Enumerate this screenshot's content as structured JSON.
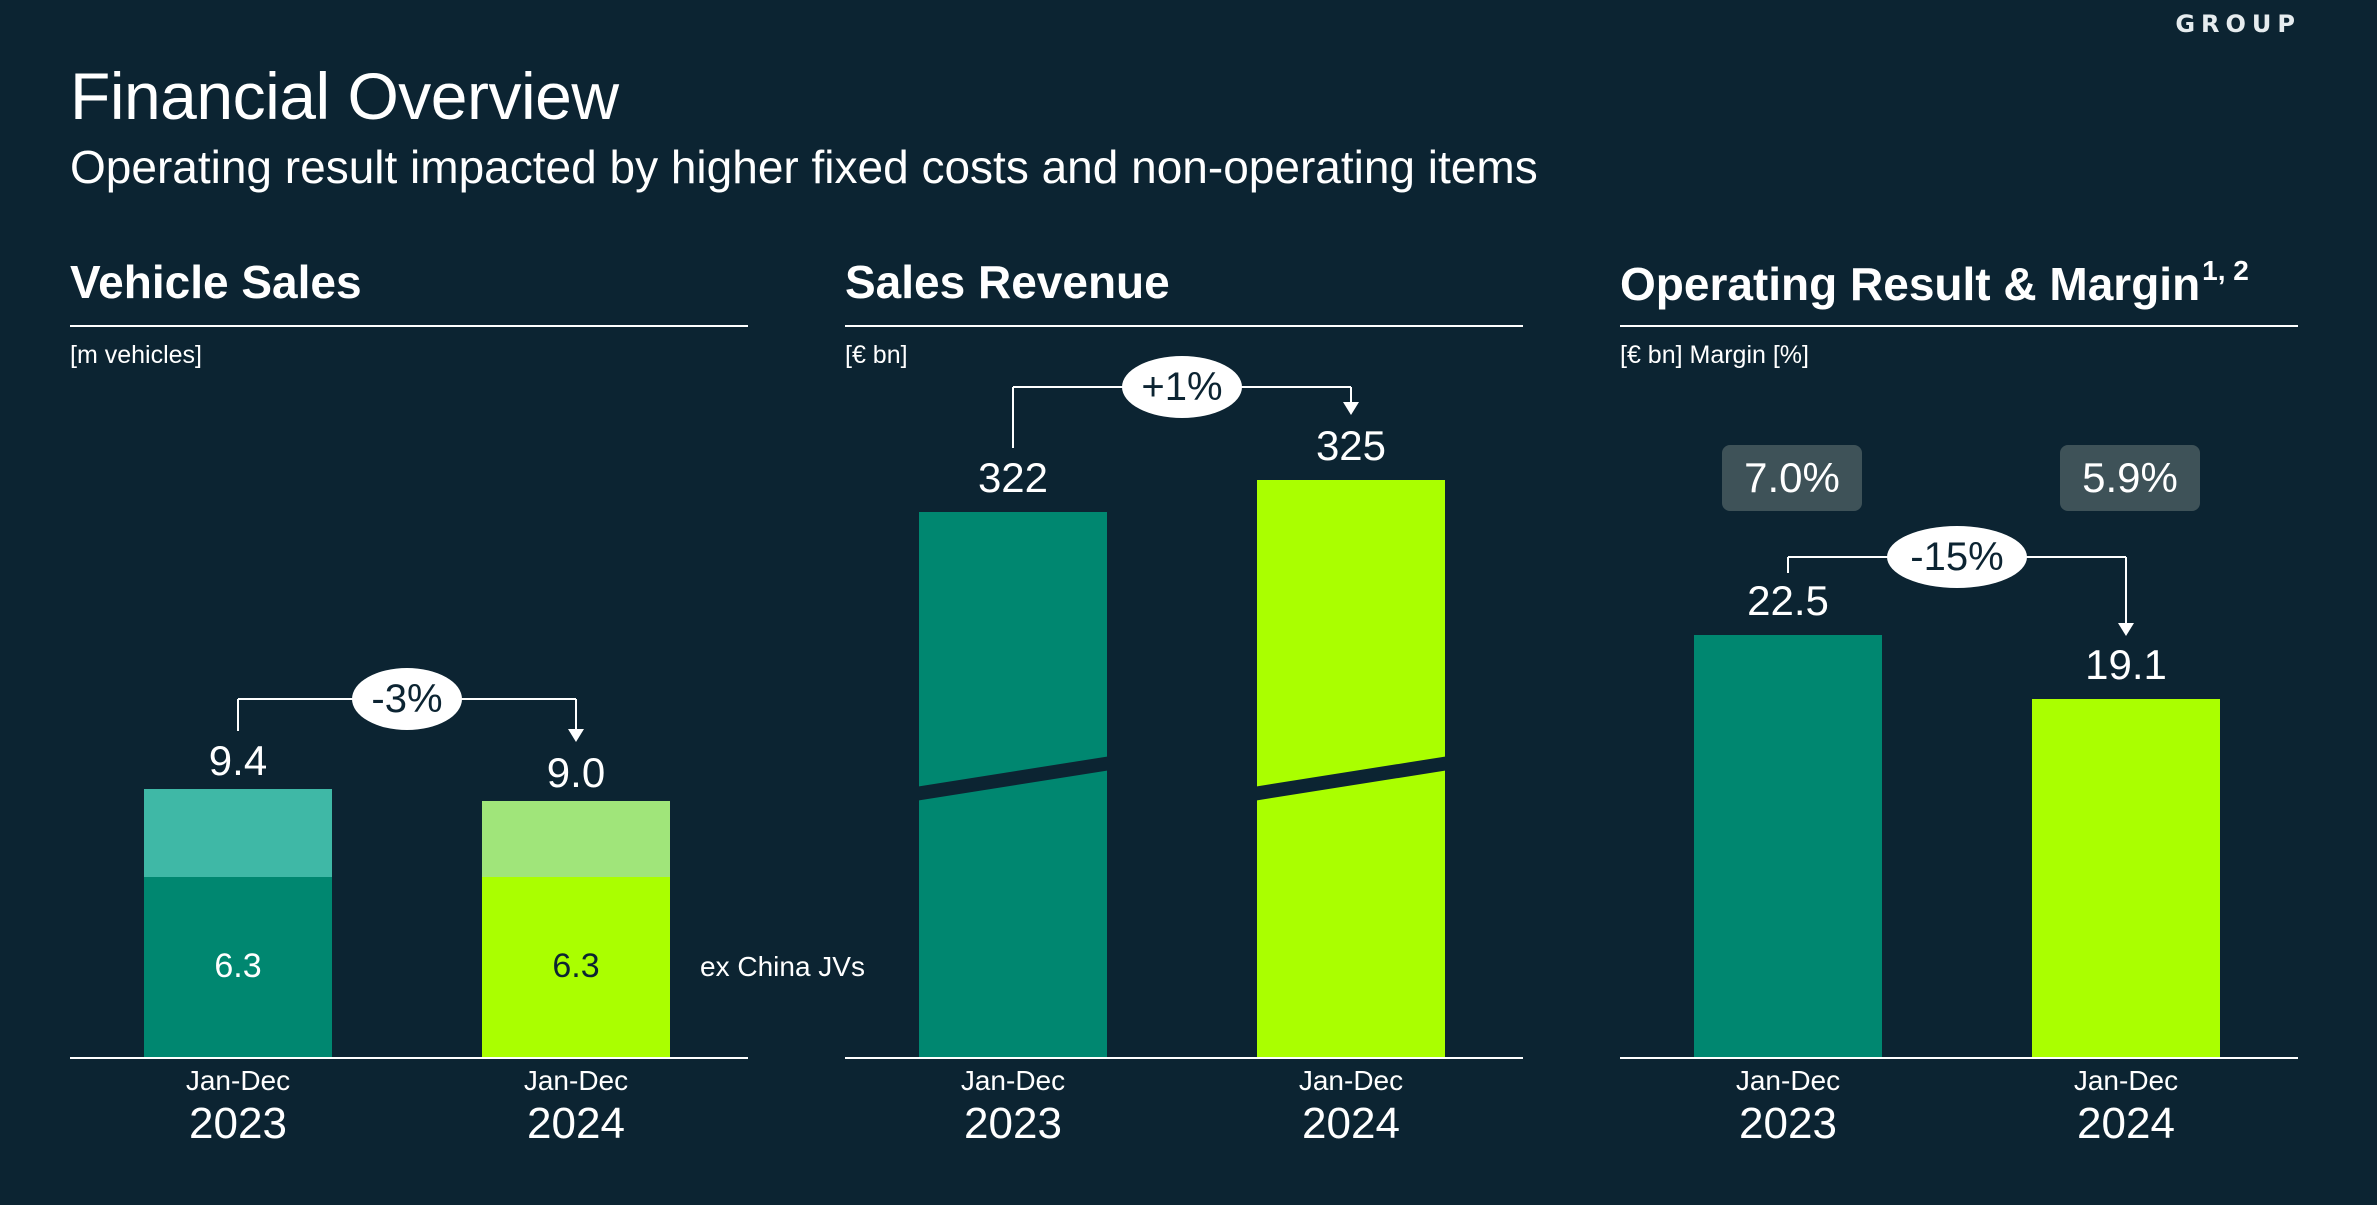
{
  "header": {
    "brand": "GROUP",
    "title": "Financial Overview",
    "subtitle": "Operating result impacted by higher fixed costs and non-operating items"
  },
  "colors": {
    "background": "#0c2432",
    "bar_2023": "#008770",
    "bar_2023_light": "#3fb8a6",
    "bar_2024": "#aaff00",
    "bar_2024_light": "#a0e57a",
    "margin_box": "#3e5258"
  },
  "chart_data": [
    {
      "type": "bar",
      "title": "Vehicle Sales",
      "unit": "[m vehicles]",
      "categories": [
        "Jan-Dec 2023",
        "Jan-Dec 2024"
      ],
      "periods": [
        "Jan-Dec",
        "Jan-Dec"
      ],
      "years": [
        "2023",
        "2024"
      ],
      "series": [
        {
          "name": "ex China JVs",
          "values": [
            6.3,
            6.3
          ]
        },
        {
          "name": "China JVs",
          "values": [
            3.1,
            2.7
          ]
        }
      ],
      "totals": [
        9.4,
        9.0
      ],
      "total_labels": [
        "9.4",
        "9.0"
      ],
      "inner_labels": [
        "6.3",
        "6.3"
      ],
      "series_label": "ex China JVs",
      "change": "-3%",
      "ylim": [
        0,
        25
      ]
    },
    {
      "type": "bar",
      "title": "Sales Revenue",
      "unit": "[€ bn]",
      "categories": [
        "Jan-Dec 2023",
        "Jan-Dec 2024"
      ],
      "periods": [
        "Jan-Dec",
        "Jan-Dec"
      ],
      "years": [
        "2023",
        "2024"
      ],
      "values": [
        322,
        325
      ],
      "value_labels": [
        "322",
        "325"
      ],
      "axis_break": true,
      "change": "+1%",
      "ylim": [
        0,
        330
      ]
    },
    {
      "type": "bar",
      "title": "Operating Result & Margin",
      "title_footnote": "1, 2",
      "unit": "[€ bn] Margin [%]",
      "categories": [
        "Jan-Dec 2023",
        "Jan-Dec 2024"
      ],
      "periods": [
        "Jan-Dec",
        "Jan-Dec"
      ],
      "years": [
        "2023",
        "2024"
      ],
      "values": [
        22.5,
        19.1
      ],
      "value_labels": [
        "22.5",
        "19.1"
      ],
      "margins": [
        "7.0%",
        "5.9%"
      ],
      "change": "-15%",
      "ylim": [
        0,
        25
      ]
    }
  ]
}
